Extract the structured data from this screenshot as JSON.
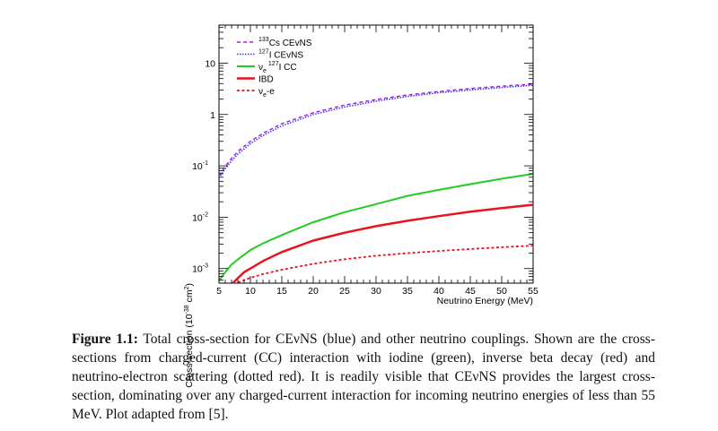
{
  "chart_data": {
    "type": "line",
    "xlabel": "Neutrino Energy (MeV)",
    "ylabel_main": "Cross-section (10",
    "ylabel_exp": "-38",
    "ylabel_unit": " cm",
    "ylabel_unit_exp": "2",
    "ylabel_close": ")",
    "x_ticks": [
      "5",
      "10",
      "15",
      "20",
      "25",
      "30",
      "35",
      "40",
      "45",
      "50",
      "55"
    ],
    "x_range": [
      5,
      55
    ],
    "y_scale": "log",
    "y_range": [
      0.00052,
      55
    ],
    "y_ticks": [
      {
        "value": 0.001,
        "base": "10",
        "exp": "-3"
      },
      {
        "value": 0.01,
        "base": "10",
        "exp": "-2"
      },
      {
        "value": 0.1,
        "base": "10",
        "exp": "-1"
      },
      {
        "value": 1,
        "base": "1",
        "exp": ""
      },
      {
        "value": 10,
        "base": "10",
        "exp": ""
      }
    ],
    "grid": false,
    "legend_position": "top-left",
    "series": [
      {
        "name_pre": "",
        "name_sup": "133",
        "name_main": "Cs CEvNS",
        "name_sub": "",
        "name_sup2": "",
        "name_post": "",
        "color": "#a020f0",
        "dash": "4,3",
        "width": 1.5,
        "x": [
          5,
          6,
          7,
          8,
          10,
          12,
          15,
          20,
          25,
          30,
          35,
          40,
          45,
          50,
          55
        ],
        "y": [
          0.065,
          0.098,
          0.14,
          0.19,
          0.3,
          0.43,
          0.66,
          1.08,
          1.52,
          1.95,
          2.4,
          2.8,
          3.2,
          3.55,
          3.9
        ]
      },
      {
        "name_pre": "",
        "name_sup": "127",
        "name_main": "I CEvNS",
        "name_sub": "",
        "name_sup2": "",
        "name_post": "",
        "color": "#3b3bdc",
        "dash": "1.5,1.5",
        "width": 1.5,
        "x": [
          5,
          6,
          7,
          8,
          10,
          12,
          15,
          20,
          25,
          30,
          35,
          40,
          45,
          50,
          55
        ],
        "y": [
          0.058,
          0.088,
          0.125,
          0.17,
          0.27,
          0.39,
          0.6,
          1.0,
          1.4,
          1.82,
          2.25,
          2.65,
          3.0,
          3.35,
          3.7
        ]
      },
      {
        "name_pre": "ν",
        "name_sup": "",
        "name_main": "",
        "name_sub": "e",
        "name_sup2": "127",
        "name_post": "I CC",
        "color": "#22cc22",
        "dash": "",
        "width": 2,
        "x": [
          5,
          6,
          7,
          8,
          10,
          12,
          15,
          20,
          25,
          30,
          35,
          40,
          45,
          50,
          55
        ],
        "y": [
          0.00058,
          0.00085,
          0.0012,
          0.0015,
          0.0023,
          0.0031,
          0.0045,
          0.008,
          0.0125,
          0.018,
          0.026,
          0.034,
          0.044,
          0.056,
          0.07
        ]
      },
      {
        "name_pre": "",
        "name_sup": "",
        "name_main": "IBD",
        "name_sub": "",
        "name_sup2": "",
        "name_post": "",
        "color": "#e8141e",
        "dash": "",
        "width": 2.5,
        "x": [
          7.2,
          8,
          9,
          10,
          12,
          15,
          20,
          25,
          30,
          35,
          40,
          45,
          50,
          55
        ],
        "y": [
          0.00052,
          0.00065,
          0.00085,
          0.001,
          0.0014,
          0.0021,
          0.0035,
          0.005,
          0.0067,
          0.0085,
          0.0105,
          0.0128,
          0.015,
          0.0175
        ]
      },
      {
        "name_pre": "ν",
        "name_sup": "",
        "name_main": "",
        "name_sub": "e",
        "name_sup2": "",
        "name_post": "-e",
        "color": "#e8141e",
        "dash": "3,2.5",
        "width": 1.8,
        "x": [
          8,
          10,
          12,
          15,
          20,
          25,
          30,
          35,
          40,
          45,
          50,
          55
        ],
        "y": [
          0.00054,
          0.00066,
          0.00078,
          0.00095,
          0.00124,
          0.00152,
          0.00178,
          0.002,
          0.0022,
          0.0024,
          0.0026,
          0.0028
        ]
      }
    ]
  },
  "caption": {
    "label": "Figure 1.1:",
    "text": "Total cross-section for CEνNS (blue) and other neutrino couplings. Shown are the cross-sections from charged-current (CC) interaction with iodine (green), inverse beta decay (red) and neutrino-electron scattering (dotted red). It is readily visible that CEνNS provides the largest cross-section, dominating over any charged-current interaction for incoming neutrino energies of less than 55 MeV. Plot adapted from [5]."
  }
}
